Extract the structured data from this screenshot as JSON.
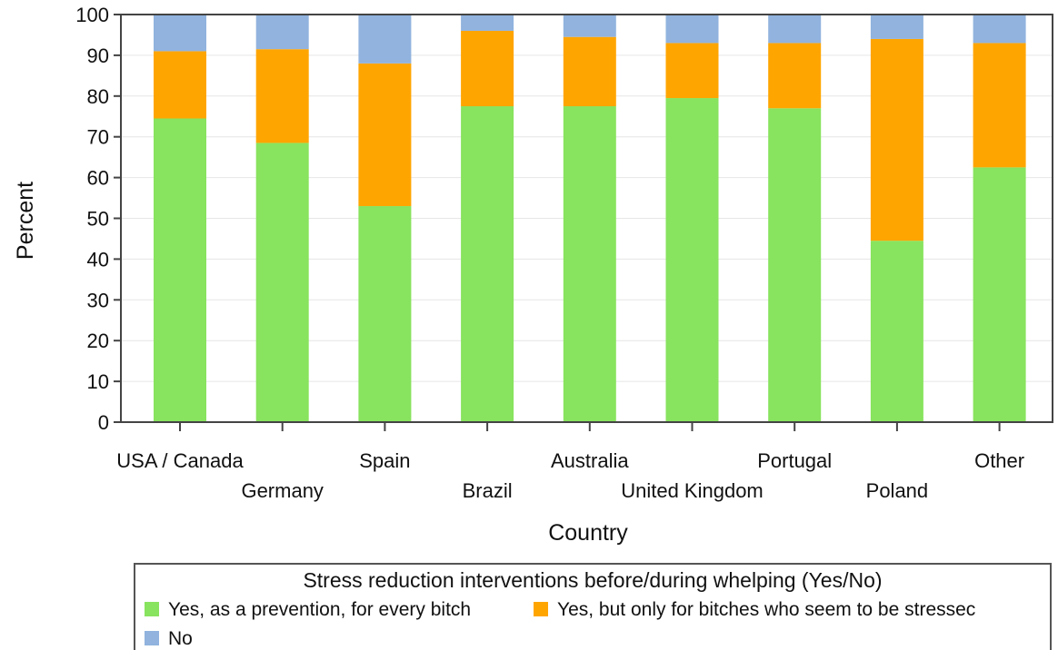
{
  "chart_data": {
    "type": "bar",
    "stacked": true,
    "xlabel": "Country",
    "ylabel": "Percent",
    "ylim": [
      0,
      100
    ],
    "yticks": [
      0,
      10,
      20,
      30,
      40,
      50,
      60,
      70,
      80,
      90,
      100
    ],
    "grid": true,
    "categories": [
      "USA / Canada",
      "Germany",
      "Spain",
      "Brazil",
      "Australia",
      "United Kingdom",
      "Portugal",
      "Poland",
      "Other"
    ],
    "series": [
      {
        "name": "Yes, as a prevention, for every bitch",
        "color": "#88e35e",
        "values": [
          74.5,
          68.5,
          53,
          77.5,
          77.5,
          79.5,
          77,
          44.5,
          62.5
        ]
      },
      {
        "name": "Yes, but only for bitches who seem to be stressec",
        "color": "#ffa500",
        "values": [
          16.5,
          23,
          35,
          18.5,
          17,
          13.5,
          16,
          49.5,
          30.5
        ]
      },
      {
        "name": "No",
        "color": "#91b3de",
        "values": [
          9,
          8.5,
          12,
          4,
          5.5,
          7,
          7,
          6,
          7
        ]
      }
    ],
    "legend": {
      "title": "Stress reduction interventions before/during whelping (Yes/No)",
      "position": "bottom"
    }
  }
}
